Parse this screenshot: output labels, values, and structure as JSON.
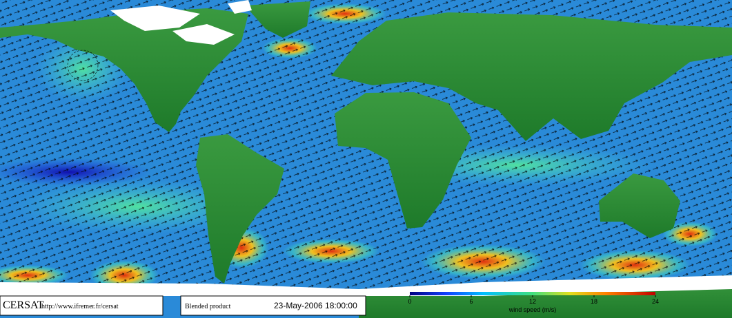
{
  "header": {
    "logo": "CERSAT",
    "url": "http://www.ifremer.fr/cersat",
    "product": "Blended product",
    "date": "23-May-2006 18:00:00"
  },
  "colorbar": {
    "lim": [
      0,
      24
    ],
    "ticks": [
      0,
      6,
      12,
      18,
      24
    ],
    "label": "wind speed (m/s)"
  }
}
